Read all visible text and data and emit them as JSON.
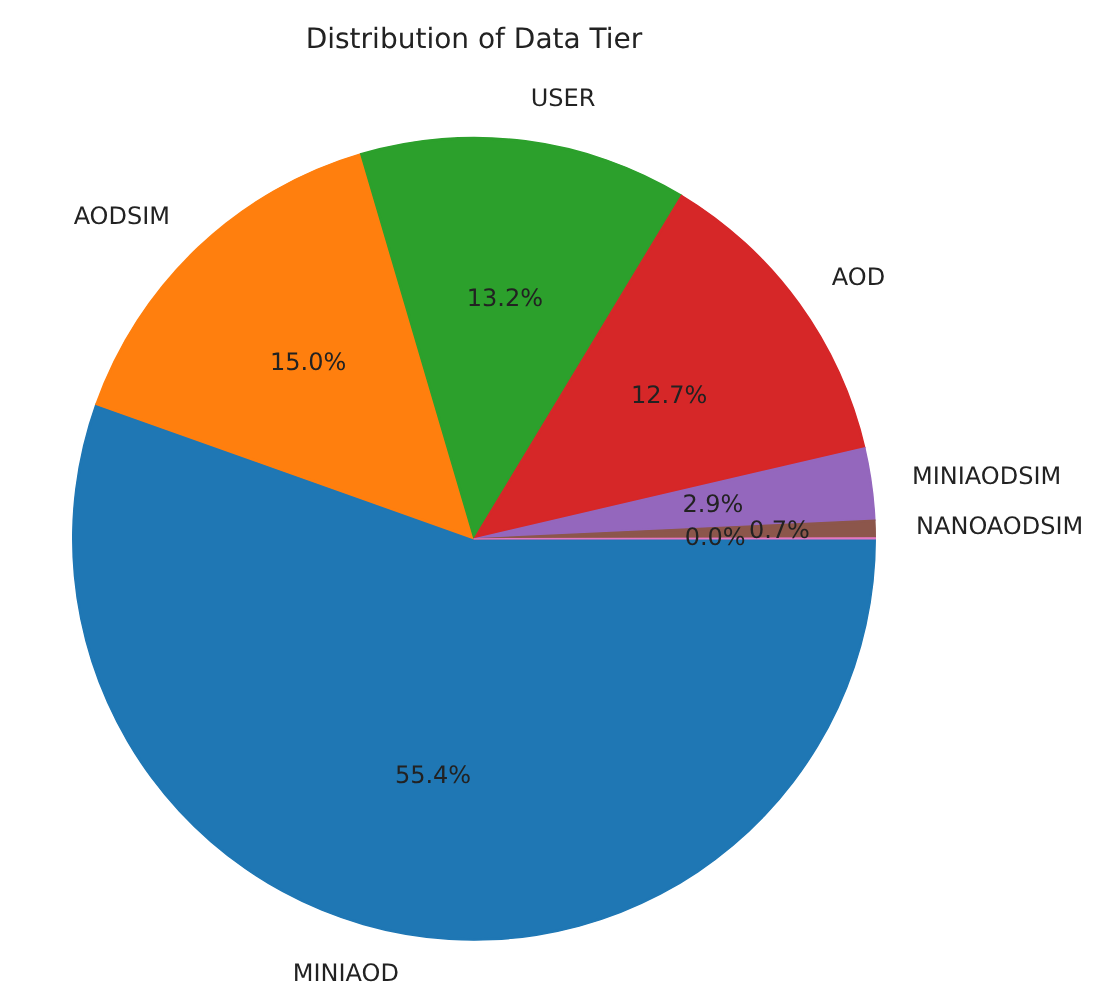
{
  "chart_data": {
    "type": "pie",
    "title": "Distribution of Data Tier",
    "categories": [
      "MINIAOD",
      "AODSIM",
      "USER",
      "AOD",
      "MINIAODSIM",
      "NANOAODSIM",
      null
    ],
    "values": [
      55.4,
      15.0,
      13.2,
      12.7,
      2.9,
      0.7,
      0.04
    ],
    "value_labels": [
      "55.4%",
      "15.0%",
      "13.2%",
      "12.7%",
      "2.9%",
      "0.7%",
      "0.0%"
    ],
    "colors": [
      "#1f77b4",
      "#ff7f0e",
      "#2ca02c",
      "#d62728",
      "#9467bd",
      "#8c564b",
      "#e377c2"
    ],
    "legend": false
  }
}
